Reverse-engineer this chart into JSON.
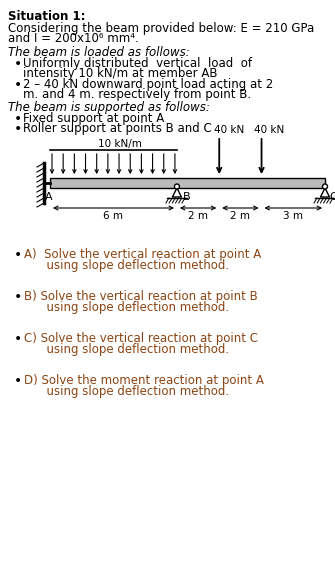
{
  "bg_color": "#ffffff",
  "text_color": "#000000",
  "q_color": "#8B4513",
  "title": "Situation 1:",
  "line1": "Considering the beam provided below: E = 210 GPa",
  "line2": "and I = 200x10⁶ mm⁴.",
  "loaded_header": "The beam is loaded as follows:",
  "bullet1a": "Uniformly distributed  vertical  load  of",
  "bullet1b": "intensity 10 kN/m at member AB",
  "bullet2a": "2 – 40 kN downward point load acting at 2",
  "bullet2b": "m. and 4 m. respectively from point B.",
  "supported_header": "The beam is supported as follows:",
  "sup1": "Fixed support at point A",
  "sup2": "Roller support at points B and C",
  "qa1": "A)  Solve the vertical reaction at point A",
  "qa2": "      using slope deflection method.",
  "qb1": "B) Solve the vertical reaction at point B",
  "qb2": "      using slope deflection method.",
  "qc1": "C) Solve the vertical reaction at point C",
  "qc2": "      using slope deflection method.",
  "qd1": "D) Solve the moment reaction at point A",
  "qd2": "      using slope deflection method.",
  "udl_label": "10 kN/m",
  "load_label": "40 kN   40 kN",
  "dims": [
    "6 m",
    "2 m",
    "2 m",
    "3 m"
  ],
  "fontsize": 8.5
}
